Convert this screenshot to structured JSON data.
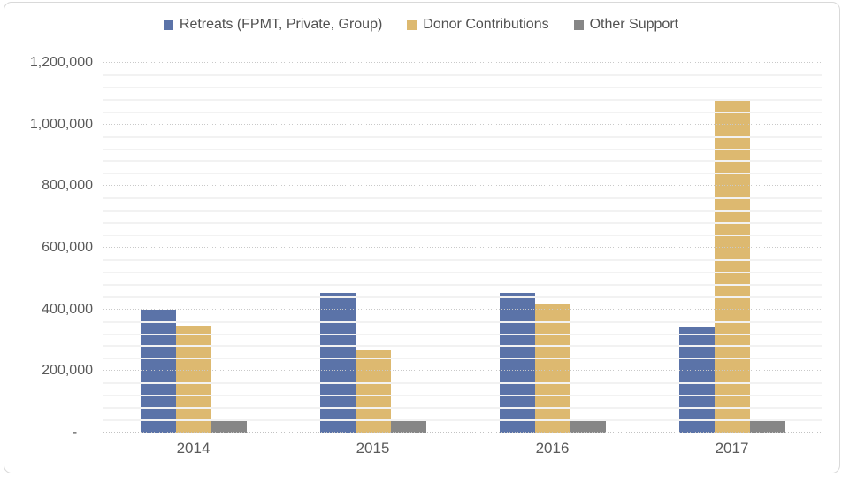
{
  "chart_data": {
    "type": "bar",
    "title": "",
    "categories": [
      "2014",
      "2015",
      "2016",
      "2017"
    ],
    "series": [
      {
        "name": "Retreats (FPMT, Private, Group)",
        "color": "#5b73a8",
        "values": [
          398000,
          455000,
          454000,
          343000
        ]
      },
      {
        "name": "Donor Contributions",
        "color": "#ddb970",
        "values": [
          347000,
          270000,
          420000,
          1080000
        ]
      },
      {
        "name": "Other Support",
        "color": "#868686",
        "values": [
          46000,
          41000,
          46000,
          38000
        ]
      }
    ],
    "ylim": [
      0,
      1200000
    ],
    "y_major_unit": 200000,
    "y_minor_unit": 40000,
    "y_tick_labels": [
      "-    ",
      "200,000",
      "400,000",
      "600,000",
      "800,000",
      "1,000,000",
      "1,200,000"
    ],
    "legend_position": "top",
    "grid": true,
    "gap_width_percent": 200
  },
  "colors": {
    "background": "#ffffff",
    "border": "#d9d9d9",
    "major_gridline": "#c9c9c9",
    "minor_gridline": "#f2f2f2",
    "axis_text": "#595959",
    "legend_text": "#515151"
  }
}
